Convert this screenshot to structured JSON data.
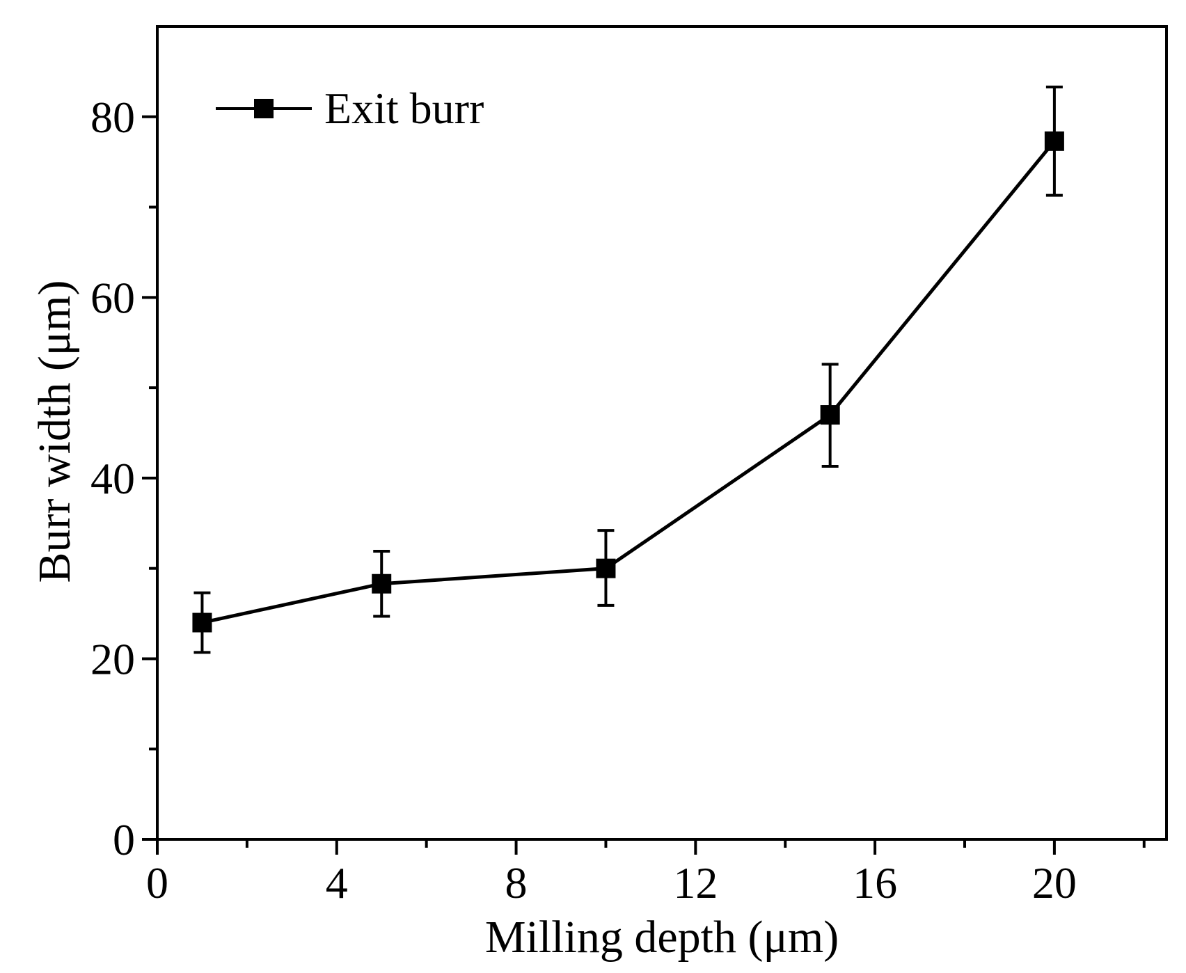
{
  "chart_data": {
    "type": "line",
    "title": "",
    "xlabel": "Milling depth (μm)",
    "ylabel": "Burr width (μm)",
    "xlim": [
      0,
      22.5
    ],
    "ylim": [
      0,
      90
    ],
    "xticks": [
      0,
      4,
      8,
      12,
      16,
      20
    ],
    "xtick_labels": [
      "0",
      "4",
      "8",
      "12",
      "16",
      "20"
    ],
    "xminor": [
      2,
      6,
      10,
      14,
      18,
      22
    ],
    "yticks": [
      0,
      20,
      40,
      60,
      80
    ],
    "ytick_labels": [
      "0",
      "20",
      "40",
      "60",
      "80"
    ],
    "yminor": [
      10,
      30,
      50,
      70
    ],
    "grid": false,
    "legend_position": "top-left",
    "series": [
      {
        "name": "Exit burr",
        "color": "#000000",
        "marker": "square",
        "x": [
          1,
          5,
          10,
          15,
          20
        ],
        "y": [
          24.0,
          28.3,
          30.0,
          47.0,
          77.3
        ],
        "err_low": [
          3.3,
          3.6,
          4.1,
          5.7,
          6.0
        ],
        "err_high": [
          3.3,
          3.6,
          4.2,
          5.6,
          6.0
        ]
      }
    ]
  }
}
